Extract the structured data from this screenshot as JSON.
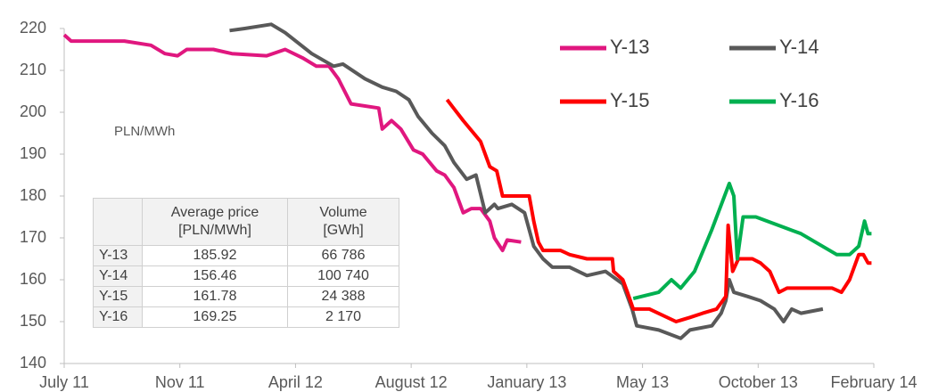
{
  "chart_data": {
    "type": "line",
    "annotation": "PLN/MWh",
    "ylim": [
      140,
      220
    ],
    "yticks": [
      140,
      150,
      160,
      170,
      180,
      190,
      200,
      210,
      220
    ],
    "xlim": [
      0,
      7
    ],
    "xticks": [
      {
        "value": 0,
        "label": "July 11"
      },
      {
        "value": 1,
        "label": "Nov 11"
      },
      {
        "value": 2,
        "label": "April 12"
      },
      {
        "value": 3,
        "label": "August 12"
      },
      {
        "value": 4,
        "label": "January 13"
      },
      {
        "value": 5,
        "label": "May 13"
      },
      {
        "value": 6,
        "label": "October 13"
      },
      {
        "value": 7,
        "label": "February 14"
      }
    ],
    "legend": "upper right",
    "series": [
      {
        "name": "Y-13",
        "color": "#e0177f",
        "x": [
          0,
          0.06,
          0.52,
          0.75,
          0.87,
          0.98,
          1.06,
          1.29,
          1.45,
          1.75,
          1.91,
          2.06,
          2.18,
          2.29,
          2.37,
          2.48,
          2.72,
          2.75,
          2.83,
          2.91,
          3.02,
          3.1,
          3.22,
          3.29,
          3.37,
          3.45,
          3.52,
          3.6,
          3.68,
          3.72,
          3.79,
          3.83,
          3.95
        ],
        "values": [
          218.5,
          217,
          217,
          216,
          214,
          213.5,
          215,
          215,
          214,
          213.5,
          215,
          213,
          211,
          211,
          208,
          202,
          201,
          196,
          198,
          196,
          191,
          190,
          186,
          185,
          182,
          176,
          177,
          177,
          174,
          170,
          167,
          169.5,
          169
        ]
      },
      {
        "name": "Y-14",
        "color": "#595959",
        "x": [
          1.43,
          1.56,
          1.79,
          1.91,
          2.14,
          2.33,
          2.41,
          2.6,
          2.75,
          2.87,
          2.98,
          3.06,
          3.18,
          3.29,
          3.37,
          3.48,
          3.56,
          3.64,
          3.72,
          3.75,
          3.87,
          3.98,
          4.06,
          4.14,
          4.22,
          4.37,
          4.52,
          4.68,
          4.83,
          4.91,
          4.95,
          5.14,
          5.33,
          5.41,
          5.6,
          5.68,
          5.72,
          5.75,
          5.79,
          5.91,
          6.02,
          6.14,
          6.22,
          6.29,
          6.37,
          6.56
        ],
        "values": [
          219.5,
          220,
          221,
          219,
          214,
          211,
          211.5,
          208,
          206,
          205,
          203,
          199,
          195,
          192,
          188,
          184,
          185,
          176,
          178,
          177,
          178,
          176,
          168,
          165,
          163,
          163,
          161,
          162,
          159,
          153,
          149,
          148,
          146,
          148,
          149,
          152,
          155,
          160,
          157,
          156,
          155,
          153,
          150,
          153,
          152,
          153
        ]
      },
      {
        "name": "Y-15",
        "color": "#ff0000",
        "x": [
          3.31,
          3.45,
          3.6,
          3.68,
          3.74,
          3.79,
          4.02,
          4.06,
          4.1,
          4.14,
          4.29,
          4.37,
          4.52,
          4.74,
          4.75,
          4.83,
          4.87,
          4.92,
          5.06,
          5.29,
          5.41,
          5.52,
          5.64,
          5.72,
          5.74,
          5.78,
          5.83,
          5.95,
          6.02,
          6.1,
          6.18,
          6.25,
          6.52,
          6.64,
          6.72,
          6.79,
          6.87,
          6.91,
          6.95,
          6.98
        ],
        "values": [
          203,
          198,
          193,
          187,
          186,
          180,
          180,
          174,
          169,
          167,
          167,
          166,
          165,
          165,
          162,
          160,
          157,
          153,
          153,
          150,
          151,
          152,
          153,
          156,
          173,
          162,
          165,
          165,
          164,
          162,
          157,
          158,
          158,
          158,
          157,
          160,
          166,
          166,
          164,
          164
        ]
      },
      {
        "name": "Y-16",
        "color": "#00b050",
        "x": [
          4.92,
          5.14,
          5.25,
          5.33,
          5.45,
          5.6,
          5.75,
          5.79,
          5.82,
          5.87,
          5.98,
          6.37,
          6.68,
          6.79,
          6.87,
          6.92,
          6.95,
          6.98
        ],
        "values": [
          155.5,
          157,
          160,
          158,
          162,
          172,
          183,
          180,
          165,
          175,
          175,
          171,
          166,
          166,
          168,
          174,
          171,
          171
        ]
      }
    ],
    "table": {
      "header": [
        [
          "Average price",
          "[PLN/MWh]"
        ],
        [
          "Volume",
          "[GWh]"
        ]
      ],
      "rows": [
        [
          "Y-13",
          "185.92",
          "66 786"
        ],
        [
          "Y-14",
          "156.46",
          "100 740"
        ],
        [
          "Y-15",
          "161.78",
          "24 388"
        ],
        [
          "Y-16",
          "169.25",
          "2 170"
        ]
      ]
    }
  }
}
